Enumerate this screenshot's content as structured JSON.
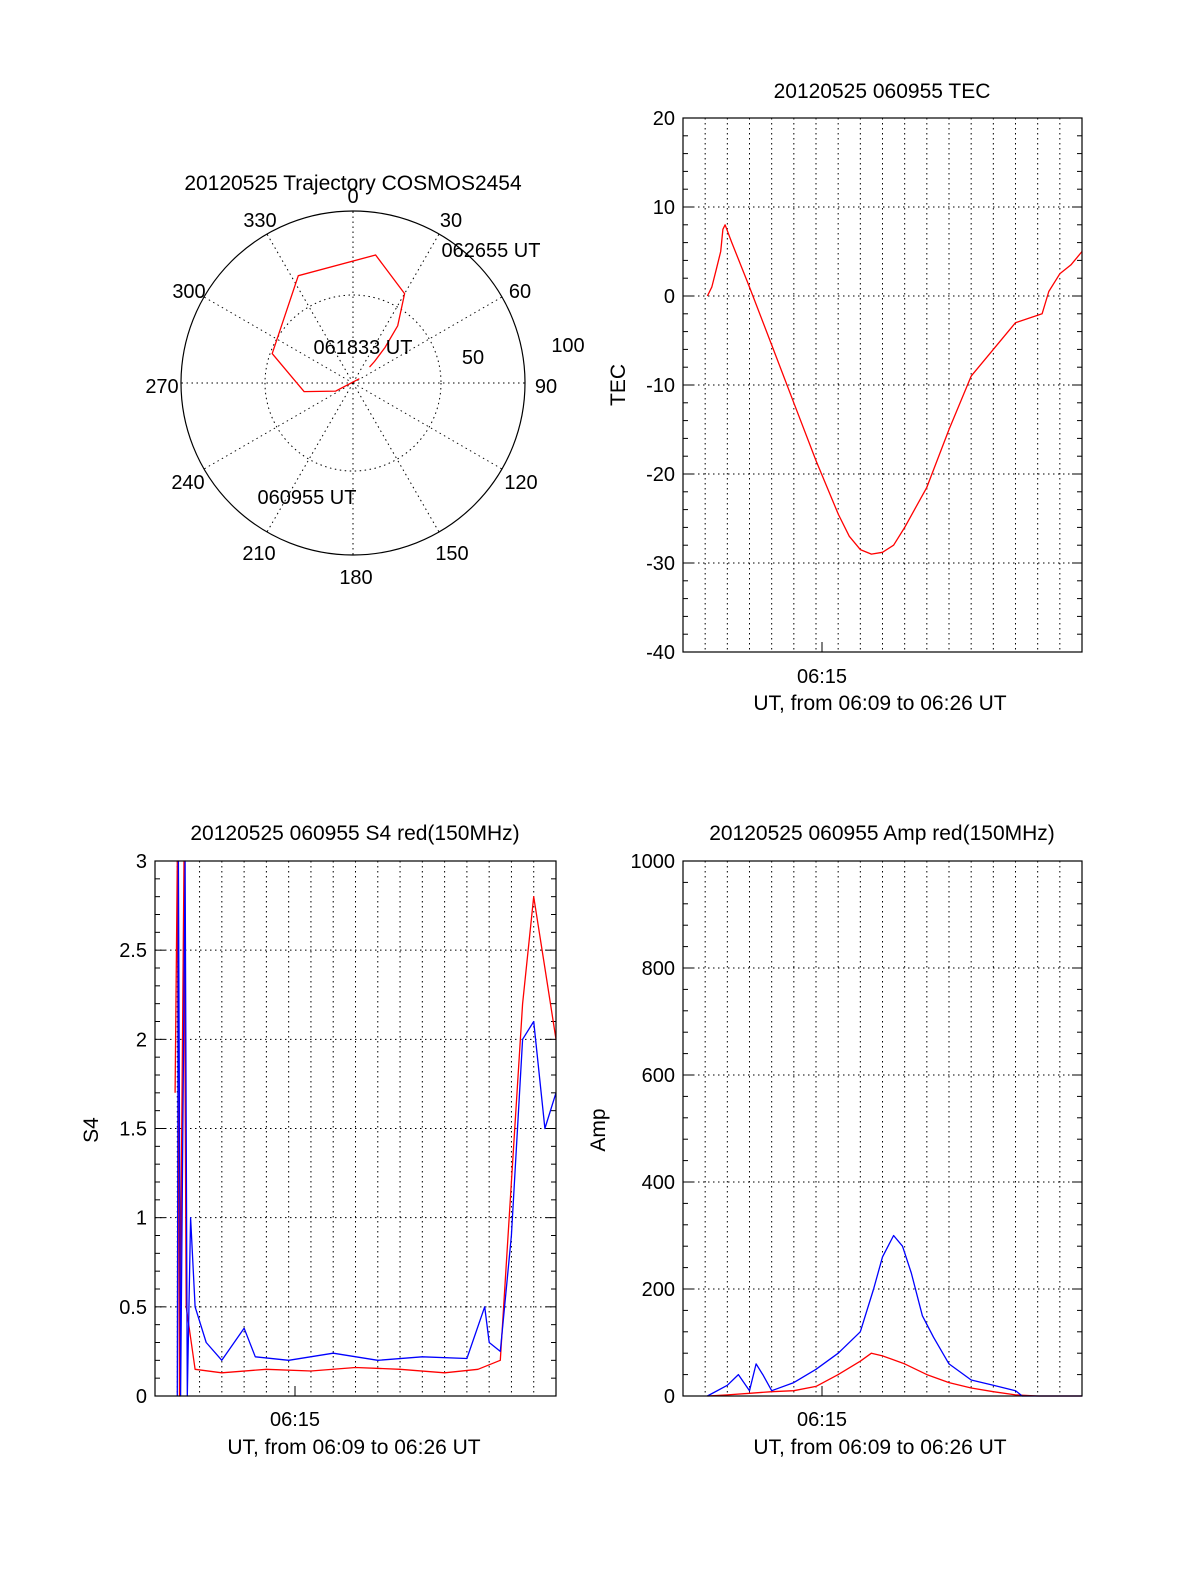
{
  "chart_data": [
    {
      "type": "polar",
      "title": "20120525 Trajectory COSMOS2454",
      "angle_labels": [
        "0",
        "30",
        "60",
        "90",
        "120",
        "150",
        "180",
        "210",
        "240",
        "270",
        "300",
        "330"
      ],
      "radius_labels": [
        "50",
        "100"
      ],
      "series": [
        {
          "color": "#ff0000",
          "points": [
            [
              236,
              94
            ],
            [
              245,
              80
            ],
            [
              260,
              64
            ],
            [
              290,
              45
            ],
            [
              333,
              27
            ],
            [
              10,
              22
            ],
            [
              30,
              36
            ],
            [
              38,
              52
            ],
            [
              42,
              65
            ],
            [
              45,
              74
            ],
            [
              46,
              78
            ]
          ]
        }
      ],
      "annotations": [
        {
          "text": "062655 UT",
          "az": 39,
          "el": 31
        },
        {
          "text": "061833 UT",
          "az": 0,
          "el": 71
        },
        {
          "text": "060955 UT",
          "az": 225,
          "el": 8
        }
      ]
    },
    {
      "type": "line",
      "title": "20120525 060955 TEC",
      "ylabel": "TEC",
      "xlabel": "UT, from 06:09 to 06:26 UT",
      "xtick_label": "06:15",
      "xlim": [
        0,
        18
      ],
      "ylim": [
        -40,
        20
      ],
      "yticks": [
        "-40",
        "-30",
        "-20",
        "-10",
        "0",
        "10",
        "20"
      ],
      "grid": true,
      "series": [
        {
          "color": "#ff0000",
          "points": [
            [
              1.1,
              0
            ],
            [
              1.3,
              1
            ],
            [
              1.5,
              3
            ],
            [
              1.7,
              5
            ],
            [
              1.8,
              7.5
            ],
            [
              1.9,
              8
            ],
            [
              2.2,
              6
            ],
            [
              3,
              1
            ],
            [
              4,
              -5.5
            ],
            [
              5,
              -12
            ],
            [
              6,
              -18.5
            ],
            [
              7,
              -24.5
            ],
            [
              7.5,
              -27
            ],
            [
              8,
              -28.5
            ],
            [
              8.5,
              -29
            ],
            [
              9,
              -28.8
            ],
            [
              9.5,
              -28
            ],
            [
              10,
              -26
            ],
            [
              11,
              -21.5
            ],
            [
              12,
              -15
            ],
            [
              13,
              -9
            ],
            [
              14,
              -6
            ],
            [
              15,
              -3
            ],
            [
              16.2,
              -2
            ],
            [
              16.5,
              0.5
            ],
            [
              17,
              2.5
            ],
            [
              17.5,
              3.5
            ],
            [
              18,
              5
            ]
          ]
        }
      ]
    },
    {
      "type": "line",
      "title": "20120525 060955 S4 red(150MHz)",
      "ylabel": "S4",
      "xlabel": "UT, from 06:09 to 06:26 UT",
      "xtick_label": "06:15",
      "xlim": [
        0,
        18
      ],
      "ylim": [
        0,
        3
      ],
      "yticks": [
        "0",
        "0.5",
        "1",
        "1.5",
        "2",
        "2.5",
        "3"
      ],
      "grid": true,
      "series": [
        {
          "color": "#ff0000",
          "points": [
            [
              0.9,
              1.7
            ],
            [
              1,
              3
            ],
            [
              1.1,
              0
            ],
            [
              1.3,
              3
            ],
            [
              1.4,
              0.5
            ],
            [
              1.8,
              0.15
            ],
            [
              3,
              0.13
            ],
            [
              5,
              0.15
            ],
            [
              7,
              0.14
            ],
            [
              9,
              0.16
            ],
            [
              11,
              0.15
            ],
            [
              13,
              0.13
            ],
            [
              14.5,
              0.15
            ],
            [
              15.5,
              0.2
            ],
            [
              16,
              1.2
            ],
            [
              16.5,
              2.2
            ],
            [
              17,
              2.8
            ],
            [
              17.5,
              2.4
            ],
            [
              18,
              2
            ]
          ]
        },
        {
          "color": "#0000ff",
          "points": [
            [
              1,
              0
            ],
            [
              1.05,
              3
            ],
            [
              1.15,
              0
            ],
            [
              1.35,
              3
            ],
            [
              1.45,
              0
            ],
            [
              1.6,
              1
            ],
            [
              1.8,
              0.5
            ],
            [
              2.3,
              0.3
            ],
            [
              3,
              0.2
            ],
            [
              4,
              0.38
            ],
            [
              4.5,
              0.22
            ],
            [
              6,
              0.2
            ],
            [
              8,
              0.24
            ],
            [
              10,
              0.2
            ],
            [
              12,
              0.22
            ],
            [
              14,
              0.21
            ],
            [
              14.8,
              0.5
            ],
            [
              15,
              0.3
            ],
            [
              15.5,
              0.25
            ],
            [
              16,
              0.9
            ],
            [
              16.5,
              2
            ],
            [
              17,
              2.1
            ],
            [
              17.5,
              1.5
            ],
            [
              18,
              1.7
            ]
          ]
        }
      ]
    },
    {
      "type": "line",
      "title": "20120525 060955 Amp red(150MHz)",
      "ylabel": "Amp",
      "xlabel": "UT, from 06:09 to 06:26 UT",
      "xtick_label": "06:15",
      "xlim": [
        0,
        18
      ],
      "ylim": [
        0,
        1000
      ],
      "yticks": [
        "0",
        "200",
        "400",
        "600",
        "800",
        "1000"
      ],
      "grid": true,
      "series": [
        {
          "color": "#ff0000",
          "points": [
            [
              1.1,
              0
            ],
            [
              2,
              2
            ],
            [
              3,
              5
            ],
            [
              4,
              8
            ],
            [
              5,
              10
            ],
            [
              6,
              18
            ],
            [
              7,
              40
            ],
            [
              8,
              65
            ],
            [
              8.5,
              80
            ],
            [
              9,
              75
            ],
            [
              10,
              60
            ],
            [
              11,
              40
            ],
            [
              12,
              25
            ],
            [
              13,
              15
            ],
            [
              14,
              8
            ],
            [
              15,
              2
            ],
            [
              16,
              0
            ],
            [
              18,
              0
            ]
          ]
        },
        {
          "color": "#0000ff",
          "points": [
            [
              1.1,
              0
            ],
            [
              2,
              20
            ],
            [
              2.5,
              40
            ],
            [
              3,
              10
            ],
            [
              3.3,
              60
            ],
            [
              3.6,
              40
            ],
            [
              4,
              10
            ],
            [
              5,
              25
            ],
            [
              6,
              50
            ],
            [
              7,
              80
            ],
            [
              8,
              120
            ],
            [
              8.6,
              200
            ],
            [
              9,
              260
            ],
            [
              9.5,
              300
            ],
            [
              9.9,
              280
            ],
            [
              10.3,
              230
            ],
            [
              10.8,
              150
            ],
            [
              11.3,
              110
            ],
            [
              12,
              60
            ],
            [
              13,
              30
            ],
            [
              14,
              20
            ],
            [
              15,
              10
            ],
            [
              15.3,
              0
            ],
            [
              18,
              0
            ]
          ]
        }
      ]
    }
  ]
}
